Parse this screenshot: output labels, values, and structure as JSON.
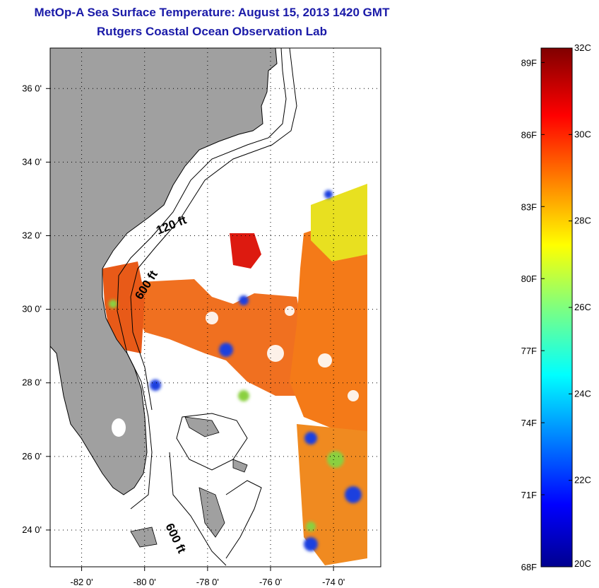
{
  "header": {
    "title": "MetOp-A Sea Surface Temperature:  August 15, 2013 1420 GMT",
    "subtitle": "Rutgers Coastal Ocean Observation Lab"
  },
  "map": {
    "lon_range": [
      -83,
      -72.5
    ],
    "lat_range": [
      23,
      37.1
    ],
    "lon_ticks": [
      {
        "label": "-82 0'",
        "value": -82
      },
      {
        "label": "-80 0'",
        "value": -80
      },
      {
        "label": "-78 0'",
        "value": -78
      },
      {
        "label": "-76 0'",
        "value": -76
      },
      {
        "label": "-74 0'",
        "value": -74
      }
    ],
    "lat_ticks": [
      {
        "label": "36 0'",
        "value": 36
      },
      {
        "label": "34 0'",
        "value": 34
      },
      {
        "label": "32 0'",
        "value": 32
      },
      {
        "label": "30 0'",
        "value": 30
      },
      {
        "label": "28 0'",
        "value": 28
      },
      {
        "label": "26 0'",
        "value": 26
      },
      {
        "label": "24 0'",
        "value": 24
      }
    ],
    "depth_labels": [
      "120 ft",
      "600 ft",
      "600 ft"
    ],
    "land_color": "#a0a0a0"
  },
  "colorbar": {
    "range_c": [
      20,
      32
    ],
    "celsius_ticks": [
      "32C",
      "30C",
      "28C",
      "26C",
      "24C",
      "22C",
      "20C"
    ],
    "fahrenheit_ticks": [
      "89F",
      "86F",
      "83F",
      "80F",
      "77F",
      "74F",
      "71F",
      "68F"
    ],
    "colormap": "jet"
  }
}
